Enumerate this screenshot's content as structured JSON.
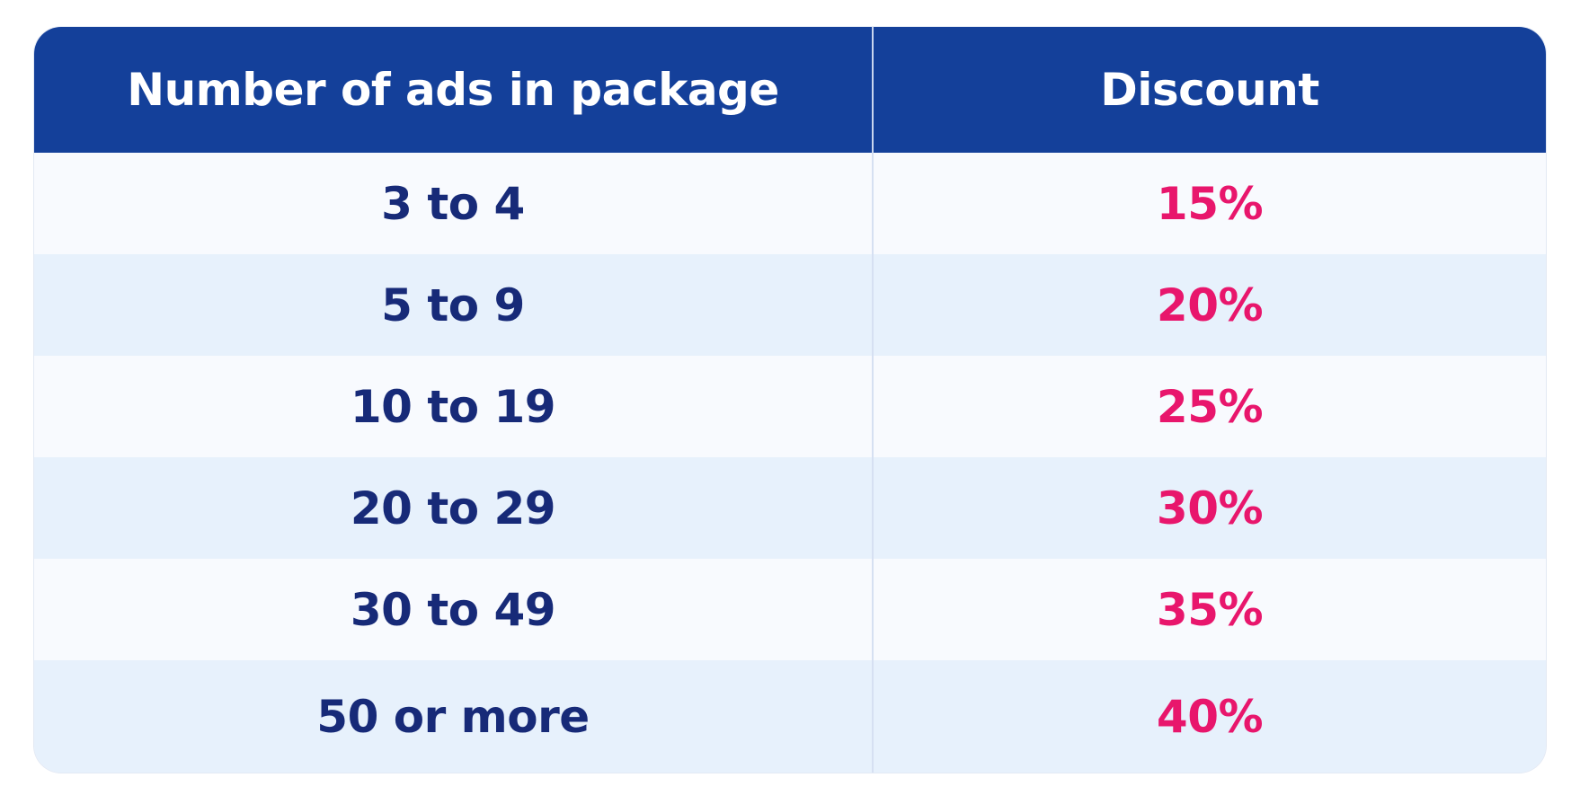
{
  "table": {
    "headers": {
      "ads": "Number of ads in package",
      "discount": "Discount"
    },
    "rows": [
      {
        "ads": "3 to 4",
        "discount": "15%"
      },
      {
        "ads": "5 to 9",
        "discount": "20%"
      },
      {
        "ads": "10 to 19",
        "discount": "25%"
      },
      {
        "ads": "20 to 29",
        "discount": "30%"
      },
      {
        "ads": "30 to 49",
        "discount": "35%"
      },
      {
        "ads": "50 or more",
        "discount": "40%"
      }
    ]
  },
  "colors": {
    "header_background": "#14409a",
    "header_text": "#ffffff",
    "ads_text": "#172a78",
    "discount_text": "#e8166c",
    "row_light": "#f8fafe",
    "row_tint": "#e7f1fc"
  }
}
